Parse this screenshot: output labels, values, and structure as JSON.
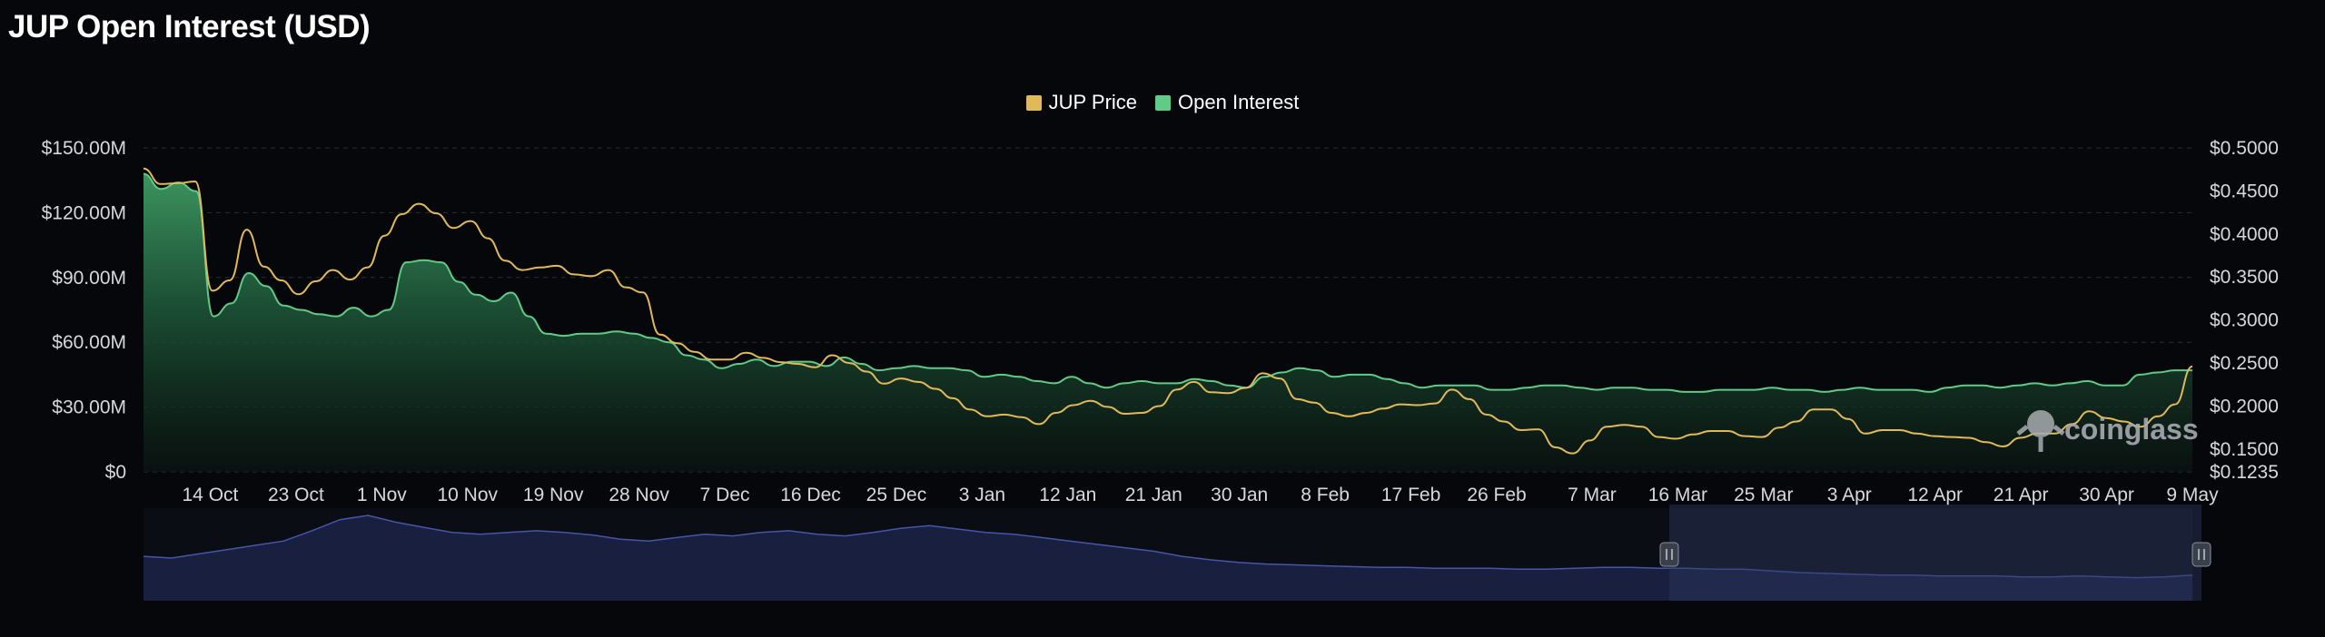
{
  "page": {
    "title": "JUP Open Interest (USD)"
  },
  "colors": {
    "price": "#e0b95a",
    "open_interest": "#5fcb87",
    "grid": "#2a2d36",
    "axis_text": "#d7d8dc",
    "navigator": "#4456a8",
    "watermark": "#a9abb2"
  },
  "watermark": {
    "text": "coinglass",
    "icon": "coinglass-logo-icon"
  },
  "chart_data": {
    "type": "area",
    "title": "JUP Open Interest (USD)",
    "legend_position": "top-center",
    "grid": true,
    "x_ticks": [
      "14 Oct",
      "23 Oct",
      "1 Nov",
      "10 Nov",
      "19 Nov",
      "28 Nov",
      "7 Dec",
      "16 Dec",
      "25 Dec",
      "3 Jan",
      "12 Jan",
      "21 Jan",
      "30 Jan",
      "8 Feb",
      "17 Feb",
      "26 Feb",
      "7 Mar",
      "16 Mar",
      "25 Mar",
      "3 Apr",
      "12 Apr",
      "21 Apr",
      "30 Apr",
      "9 May"
    ],
    "x_range": [
      "2023-10-07",
      "2024-05-09"
    ],
    "y_left": {
      "ticks": [
        "$150.00M",
        "$120.00M",
        "$90.00M",
        "$60.00M",
        "$30.00M",
        "$0"
      ],
      "range": [
        0,
        150
      ]
    },
    "y_right": {
      "ticks": [
        "$0.5000",
        "$0.4500",
        "$0.4000",
        "$0.3500",
        "$0.3000",
        "$0.2500",
        "$0.2000",
        "$0.1500",
        "$0.1235"
      ],
      "range": [
        0.1235,
        0.5
      ]
    },
    "series": [
      {
        "name": "Open Interest",
        "axis": "left",
        "unit": "M USD",
        "values": [
          138,
          131,
          134,
          130,
          72,
          78,
          92,
          86,
          77,
          75,
          73,
          72,
          76,
          72,
          75,
          97,
          98,
          97,
          88,
          82,
          79,
          83,
          72,
          64,
          63,
          64,
          64,
          65,
          64,
          62,
          60,
          54,
          52,
          48,
          50,
          52,
          49,
          51,
          51,
          49,
          53,
          50,
          47,
          48,
          49,
          48,
          48,
          47,
          44,
          45,
          44,
          42,
          41,
          44,
          41,
          39,
          41,
          42,
          41,
          41,
          43,
          42,
          40,
          39,
          44,
          46,
          48,
          47,
          44,
          45,
          45,
          43,
          41,
          39,
          40,
          40,
          40,
          38,
          38,
          39,
          40,
          40,
          39,
          38,
          39,
          39,
          38,
          38,
          37,
          37,
          38,
          38,
          38,
          39,
          38,
          38,
          37,
          38,
          39,
          38,
          38,
          38,
          37,
          39,
          40,
          40,
          39,
          40,
          41,
          40,
          41,
          42,
          40,
          40,
          45,
          46,
          47,
          47
        ]
      },
      {
        "name": "JUP Price",
        "axis": "right",
        "unit": "USD",
        "values": [
          0.476,
          0.458,
          0.459,
          0.461,
          0.334,
          0.346,
          0.405,
          0.362,
          0.346,
          0.33,
          0.345,
          0.358,
          0.347,
          0.361,
          0.398,
          0.423,
          0.435,
          0.424,
          0.407,
          0.415,
          0.395,
          0.369,
          0.358,
          0.361,
          0.363,
          0.353,
          0.351,
          0.358,
          0.338,
          0.332,
          0.283,
          0.273,
          0.263,
          0.254,
          0.254,
          0.262,
          0.256,
          0.251,
          0.249,
          0.245,
          0.259,
          0.25,
          0.24,
          0.226,
          0.232,
          0.228,
          0.22,
          0.209,
          0.196,
          0.188,
          0.19,
          0.187,
          0.179,
          0.192,
          0.201,
          0.206,
          0.199,
          0.191,
          0.192,
          0.2,
          0.219,
          0.228,
          0.216,
          0.215,
          0.221,
          0.238,
          0.232,
          0.208,
          0.204,
          0.192,
          0.188,
          0.192,
          0.197,
          0.202,
          0.201,
          0.203,
          0.219,
          0.208,
          0.19,
          0.182,
          0.172,
          0.173,
          0.152,
          0.145,
          0.16,
          0.176,
          0.178,
          0.176,
          0.164,
          0.162,
          0.167,
          0.171,
          0.171,
          0.165,
          0.164,
          0.175,
          0.182,
          0.196,
          0.196,
          0.185,
          0.168,
          0.172,
          0.172,
          0.168,
          0.165,
          0.164,
          0.163,
          0.158,
          0.153,
          0.163,
          0.168,
          0.168,
          0.179,
          0.194,
          0.186,
          0.182,
          0.176,
          0.188,
          0.202,
          0.246
        ]
      }
    ],
    "navigator_values": [
      0.52,
      0.5,
      0.55,
      0.6,
      0.65,
      0.7,
      0.82,
      0.95,
      1.0,
      0.92,
      0.86,
      0.8,
      0.78,
      0.8,
      0.82,
      0.8,
      0.77,
      0.72,
      0.7,
      0.74,
      0.78,
      0.76,
      0.8,
      0.82,
      0.78,
      0.76,
      0.8,
      0.85,
      0.88,
      0.84,
      0.8,
      0.78,
      0.74,
      0.7,
      0.66,
      0.62,
      0.58,
      0.52,
      0.48,
      0.45,
      0.43,
      0.42,
      0.41,
      0.4,
      0.39,
      0.39,
      0.38,
      0.38,
      0.38,
      0.37,
      0.37,
      0.38,
      0.39,
      0.39,
      0.38,
      0.38,
      0.37,
      0.37,
      0.35,
      0.33,
      0.32,
      0.31,
      0.3,
      0.3,
      0.29,
      0.29,
      0.29,
      0.28,
      0.28,
      0.29,
      0.28,
      0.27,
      0.28,
      0.3
    ]
  }
}
